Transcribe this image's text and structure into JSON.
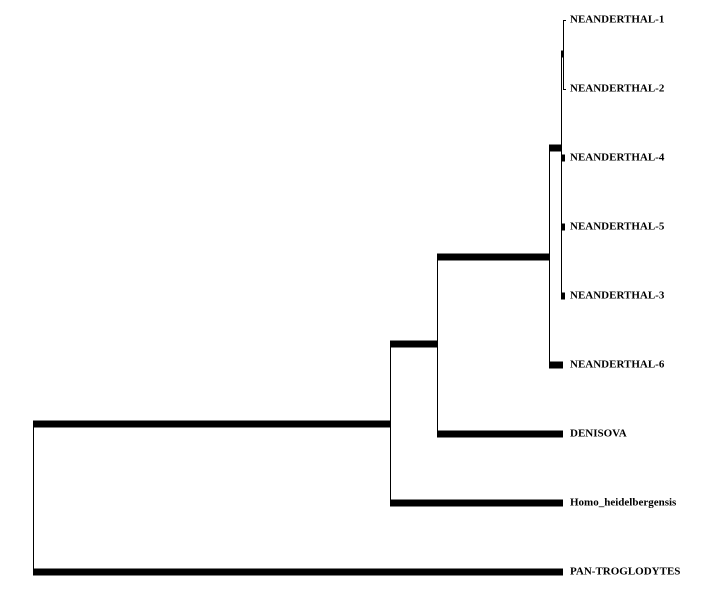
{
  "tree": {
    "leaves": [
      "NEANDERTHAL-1",
      "NEANDERTHAL-2",
      "NEANDERTHAL-4",
      "NEANDERTHAL-5",
      "NEANDERTHAL-3",
      "NEANDERTHAL-6",
      "DENISOVA",
      "Homo_heidelbergensis",
      "PAN-TROGLODYTES"
    ]
  }
}
